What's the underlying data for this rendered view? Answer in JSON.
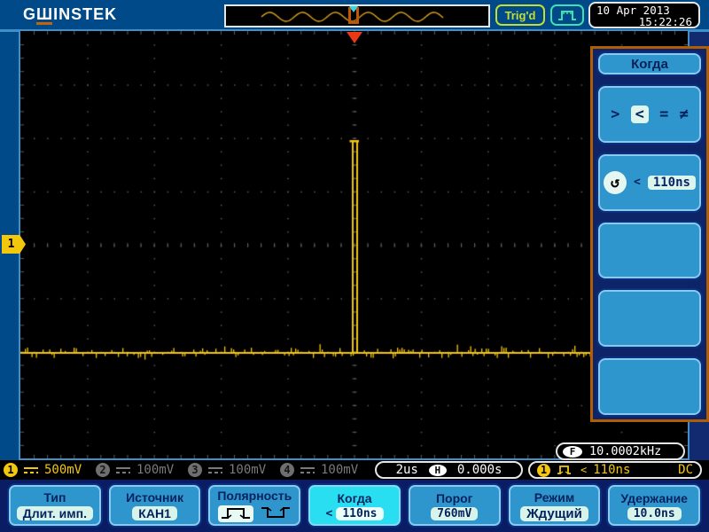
{
  "top_bar": {
    "logo": {
      "part1": "G",
      "part2": "Ш",
      "part3": "INSTEK"
    },
    "trigger_status": "Trig'd",
    "datetime": {
      "date": "10 Apr 2013",
      "time": "15:22:26"
    }
  },
  "display": {
    "channel_marker": "1",
    "frequency": {
      "label": "F",
      "value": "10.0002kHz"
    }
  },
  "side_menu": {
    "title": "Когда",
    "operators": {
      "gt": ">",
      "lt": "<",
      "eq": "=",
      "ne": "≠"
    },
    "knob_glyph": "↺",
    "condition": {
      "prefix": "<",
      "value": "110ns"
    }
  },
  "status_bar": {
    "channels": [
      {
        "number": "1",
        "value": "500mV"
      },
      {
        "number": "2",
        "value": "100mV"
      },
      {
        "number": "3",
        "value": "100mV"
      },
      {
        "number": "4",
        "value": "100mV"
      }
    ],
    "timebase": {
      "scale": "2us",
      "label": "H",
      "position": "0.000s"
    },
    "trigger": {
      "channel": "1",
      "condition": "<",
      "value": "110ns",
      "coupling": "DC"
    }
  },
  "bottom_menu": {
    "buttons": [
      {
        "title": "Тип",
        "value": "Длит. имп."
      },
      {
        "title": "Источник",
        "value": "КАН1"
      },
      {
        "title": "Полярность",
        "value": ""
      },
      {
        "title": "Когда",
        "prefix": "<",
        "value": "110ns"
      },
      {
        "title": "Порог",
        "value": "760mV"
      },
      {
        "title": "Режим",
        "value": "Ждущий"
      },
      {
        "title": "Удержание",
        "value": "10.0ns"
      }
    ]
  },
  "colors": {
    "trace": "#f3c50e",
    "accent_cyan": "#2adef2",
    "button_blue": "#2f95cd",
    "warning_orange": "#b15d04",
    "trig_red": "#e83914"
  }
}
